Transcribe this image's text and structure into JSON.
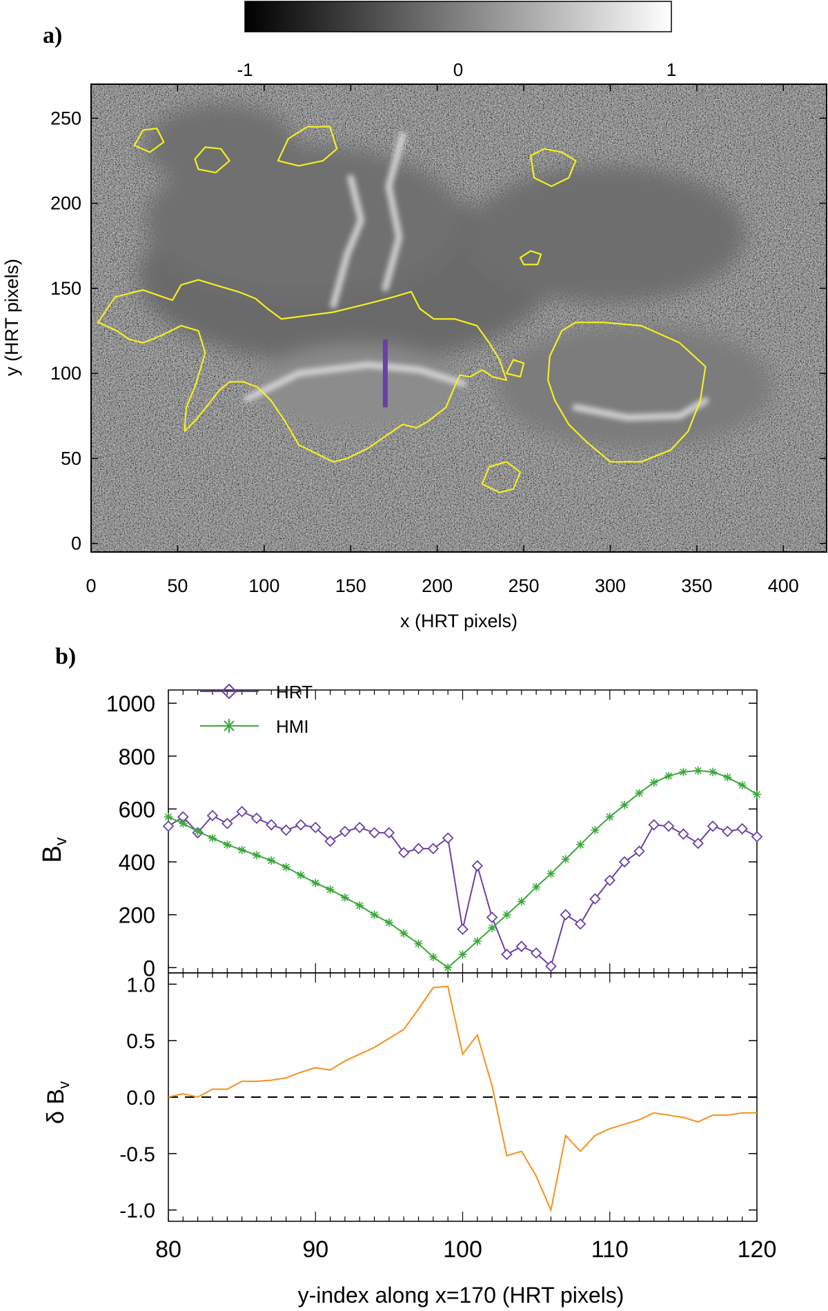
{
  "panel_a": {
    "label": "a)",
    "xlabel": "x (HRT pixels)",
    "ylabel": "y (HRT pixels)",
    "xlim": [
      0,
      425
    ],
    "ylim": [
      -5,
      270
    ],
    "xticks": [
      "0",
      "50",
      "100",
      "150",
      "200",
      "250",
      "300",
      "350",
      "400"
    ],
    "xtick_values": [
      0,
      50,
      100,
      150,
      200,
      250,
      300,
      350,
      400
    ],
    "yticks": [
      "0",
      "50",
      "100",
      "150",
      "200",
      "250"
    ],
    "ytick_values": [
      0,
      50,
      100,
      150,
      200,
      250
    ],
    "colorbar": {
      "ticks": [
        "-1",
        "0",
        "1"
      ],
      "tick_values": [
        -1,
        0,
        1
      ],
      "range": [
        -1,
        1
      ],
      "colors": [
        "#000000",
        "#ffffff"
      ]
    },
    "cut_line": {
      "x": 170,
      "y0": 80,
      "y1": 120,
      "color": "#6a3fa8"
    },
    "contour_color": "#f5f01e",
    "contours": [
      [
        [
          4,
          130
        ],
        [
          14,
          145
        ],
        [
          30,
          149
        ],
        [
          47,
          143
        ],
        [
          52,
          152
        ],
        [
          62,
          155
        ],
        [
          75,
          151
        ],
        [
          85,
          148
        ],
        [
          95,
          144
        ],
        [
          102,
          138
        ],
        [
          110,
          132
        ],
        [
          125,
          134
        ],
        [
          140,
          136
        ],
        [
          160,
          141
        ],
        [
          175,
          145
        ],
        [
          185,
          148
        ],
        [
          190,
          138
        ],
        [
          198,
          132
        ],
        [
          210,
          132
        ],
        [
          223,
          128
        ],
        [
          230,
          118
        ],
        [
          236,
          108
        ],
        [
          240,
          96
        ],
        [
          232,
          98
        ],
        [
          226,
          102
        ],
        [
          219,
          98
        ],
        [
          213,
          99
        ],
        [
          210,
          92
        ],
        [
          205,
          80
        ],
        [
          195,
          72
        ],
        [
          188,
          68
        ],
        [
          180,
          70
        ],
        [
          170,
          63
        ],
        [
          160,
          56
        ],
        [
          148,
          50
        ],
        [
          140,
          48
        ],
        [
          132,
          52
        ],
        [
          120,
          58
        ],
        [
          112,
          72
        ],
        [
          104,
          84
        ],
        [
          96,
          92
        ],
        [
          88,
          95
        ],
        [
          80,
          95
        ],
        [
          74,
          90
        ],
        [
          68,
          82
        ],
        [
          60,
          72
        ],
        [
          54,
          66
        ],
        [
          55,
          80
        ],
        [
          60,
          92
        ],
        [
          66,
          112
        ],
        [
          62,
          125
        ],
        [
          52,
          128
        ],
        [
          40,
          122
        ],
        [
          30,
          118
        ],
        [
          22,
          120
        ],
        [
          15,
          125
        ],
        [
          4,
          130
        ]
      ],
      [
        [
          265,
          110
        ],
        [
          272,
          125
        ],
        [
          280,
          130
        ],
        [
          296,
          130
        ],
        [
          318,
          128
        ],
        [
          340,
          118
        ],
        [
          355,
          104
        ],
        [
          352,
          84
        ],
        [
          345,
          66
        ],
        [
          335,
          55
        ],
        [
          318,
          48
        ],
        [
          300,
          48
        ],
        [
          286,
          60
        ],
        [
          276,
          70
        ],
        [
          268,
          84
        ],
        [
          264,
          96
        ],
        [
          265,
          110
        ]
      ],
      [
        [
          108,
          225
        ],
        [
          114,
          238
        ],
        [
          125,
          245
        ],
        [
          138,
          245
        ],
        [
          142,
          232
        ],
        [
          134,
          225
        ],
        [
          120,
          222
        ],
        [
          108,
          225
        ]
      ],
      [
        [
          60,
          226
        ],
        [
          66,
          233
        ],
        [
          75,
          232
        ],
        [
          80,
          225
        ],
        [
          72,
          218
        ],
        [
          62,
          220
        ],
        [
          60,
          226
        ]
      ],
      [
        [
          25,
          234
        ],
        [
          30,
          243
        ],
        [
          38,
          244
        ],
        [
          42,
          236
        ],
        [
          34,
          230
        ],
        [
          25,
          234
        ]
      ],
      [
        [
          254,
          228
        ],
        [
          262,
          232
        ],
        [
          272,
          230
        ],
        [
          280,
          225
        ],
        [
          276,
          215
        ],
        [
          266,
          210
        ],
        [
          256,
          215
        ],
        [
          254,
          228
        ]
      ],
      [
        [
          248,
          168
        ],
        [
          254,
          172
        ],
        [
          260,
          170
        ],
        [
          258,
          164
        ],
        [
          250,
          164
        ],
        [
          248,
          168
        ]
      ],
      [
        [
          226,
          35
        ],
        [
          230,
          45
        ],
        [
          240,
          48
        ],
        [
          248,
          42
        ],
        [
          244,
          32
        ],
        [
          236,
          30
        ],
        [
          226,
          35
        ]
      ],
      [
        [
          240,
          100
        ],
        [
          244,
          108
        ],
        [
          250,
          106
        ],
        [
          248,
          98
        ],
        [
          240,
          100
        ]
      ]
    ],
    "light_lanes": [
      [
        [
          90,
          85
        ],
        [
          120,
          100
        ],
        [
          160,
          105
        ],
        [
          190,
          102
        ],
        [
          215,
          94
        ]
      ],
      [
        [
          280,
          80
        ],
        [
          310,
          74
        ],
        [
          340,
          75
        ],
        [
          355,
          84
        ]
      ],
      [
        [
          140,
          140
        ],
        [
          148,
          170
        ],
        [
          156,
          190
        ],
        [
          150,
          215
        ]
      ],
      [
        [
          170,
          150
        ],
        [
          178,
          180
        ],
        [
          172,
          210
        ],
        [
          180,
          240
        ]
      ]
    ]
  },
  "panel_b": {
    "label": "b)",
    "chart_data": [
      {
        "type": "line",
        "xlabel": "",
        "ylabel": "B",
        "ylabel_sub": "v",
        "xlim": [
          80,
          120
        ],
        "ylim": [
          -20,
          1050
        ],
        "yticks": [
          "0",
          "200",
          "400",
          "600",
          "800",
          "1000"
        ],
        "ytick_values": [
          0,
          200,
          400,
          600,
          800,
          1000
        ],
        "legend": "top-left",
        "x": [
          80,
          81,
          82,
          83,
          84,
          85,
          86,
          87,
          88,
          89,
          90,
          91,
          92,
          93,
          94,
          95,
          96,
          97,
          98,
          99,
          100,
          101,
          102,
          103,
          104,
          105,
          106,
          107,
          108,
          109,
          110,
          111,
          112,
          113,
          114,
          115,
          116,
          117,
          118,
          119,
          120
        ],
        "series": [
          {
            "name": "HRT",
            "color": "#6a3fa8",
            "marker": "diamond",
            "values": [
              535,
              570,
              510,
              575,
              545,
              590,
              565,
              540,
              520,
              540,
              530,
              478,
              515,
              530,
              510,
              510,
              435,
              450,
              450,
              490,
              145,
              385,
              190,
              50,
              80,
              55,
              5,
              200,
              165,
              260,
              330,
              400,
              440,
              540,
              535,
              505,
              470,
              535,
              515,
              525,
              495
            ]
          },
          {
            "name": "HMI",
            "color": "#3aa83a",
            "marker": "asterisk",
            "values": [
              570,
              545,
              515,
              490,
              465,
              445,
              425,
              405,
              380,
              350,
              320,
              295,
              265,
              235,
              200,
              170,
              130,
              90,
              40,
              0,
              50,
              100,
              150,
              200,
              250,
              305,
              355,
              410,
              465,
              520,
              570,
              615,
              660,
              700,
              725,
              740,
              745,
              740,
              720,
              690,
              655
            ]
          }
        ]
      },
      {
        "type": "line",
        "xlabel": "y-index along x=170 (HRT pixels)",
        "ylabel": "δ B",
        "ylabel_sub": "v",
        "xlim": [
          80,
          120
        ],
        "ylim": [
          -1.1,
          1.1
        ],
        "xticks": [
          "80",
          "90",
          "100",
          "110",
          "120"
        ],
        "xtick_values": [
          80,
          90,
          100,
          110,
          120
        ],
        "yticks": [
          "-1.0",
          "-0.5",
          "0.0",
          "0.5",
          "1.0"
        ],
        "ytick_values": [
          -1.0,
          -0.5,
          0.0,
          0.5,
          1.0
        ],
        "reference_line": {
          "y": 0.0,
          "style": "dashed"
        },
        "x": [
          80,
          81,
          82,
          83,
          84,
          85,
          86,
          87,
          88,
          89,
          90,
          91,
          92,
          93,
          94,
          95,
          96,
          97,
          98,
          99,
          100,
          101,
          102,
          103,
          104,
          105,
          106,
          107,
          108,
          109,
          110,
          111,
          112,
          113,
          114,
          115,
          116,
          117,
          118,
          119,
          120
        ],
        "series": [
          {
            "name": "δ Bv",
            "color": "#f5901e",
            "values": [
              0.0,
              0.03,
              0.0,
              0.07,
              0.07,
              0.14,
              0.14,
              0.15,
              0.17,
              0.22,
              0.26,
              0.24,
              0.32,
              0.38,
              0.44,
              0.52,
              0.6,
              0.78,
              0.97,
              0.98,
              0.38,
              0.55,
              0.1,
              -0.52,
              -0.48,
              -0.7,
              -1.0,
              -0.34,
              -0.48,
              -0.34,
              -0.28,
              -0.24,
              -0.2,
              -0.14,
              -0.16,
              -0.18,
              -0.22,
              -0.16,
              -0.16,
              -0.14,
              -0.14
            ]
          }
        ]
      }
    ]
  }
}
